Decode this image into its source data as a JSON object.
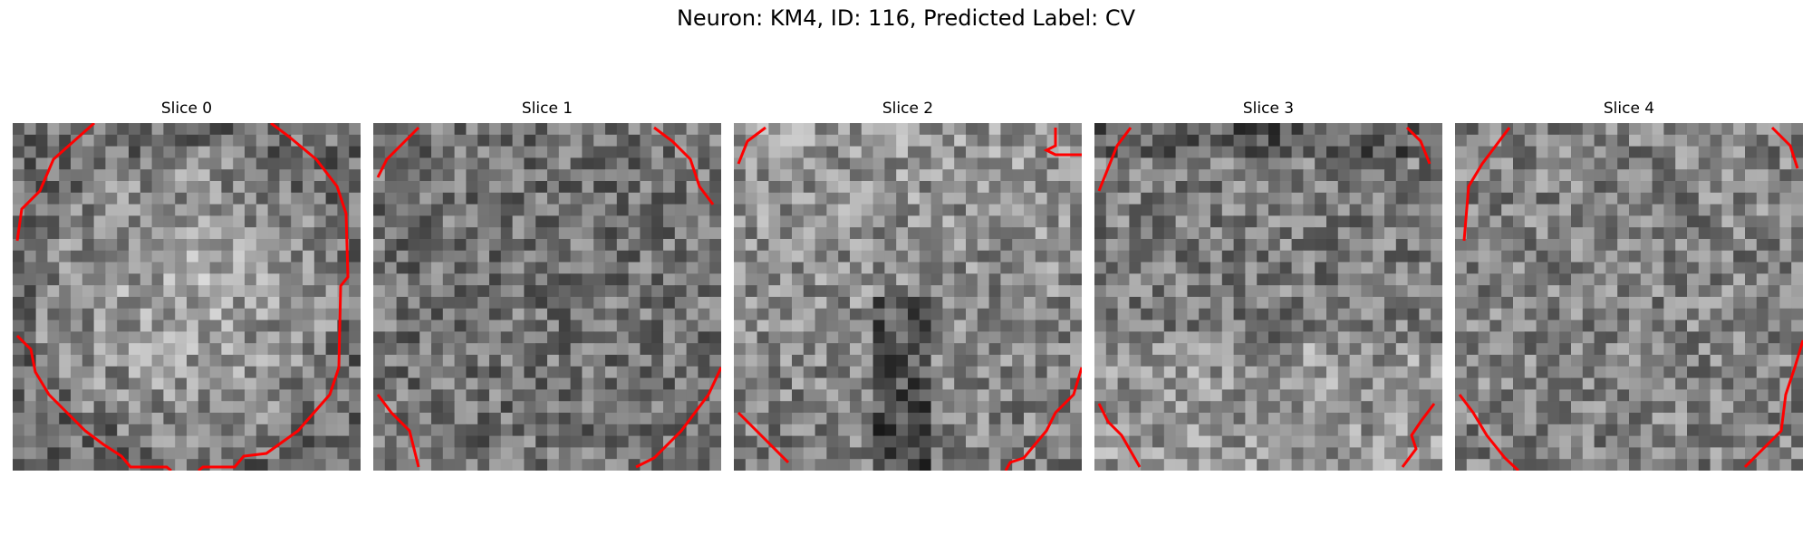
{
  "figure": {
    "title": "Neuron: KM4, ID: 116, Predicted Label: CV",
    "panels": [
      {
        "label": "Slice 0"
      },
      {
        "label": "Slice 1"
      },
      {
        "label": "Slice 2"
      },
      {
        "label": "Slice 3"
      },
      {
        "label": "Slice 4"
      }
    ],
    "contour_color": "#ff0000",
    "colormap": "gray"
  }
}
